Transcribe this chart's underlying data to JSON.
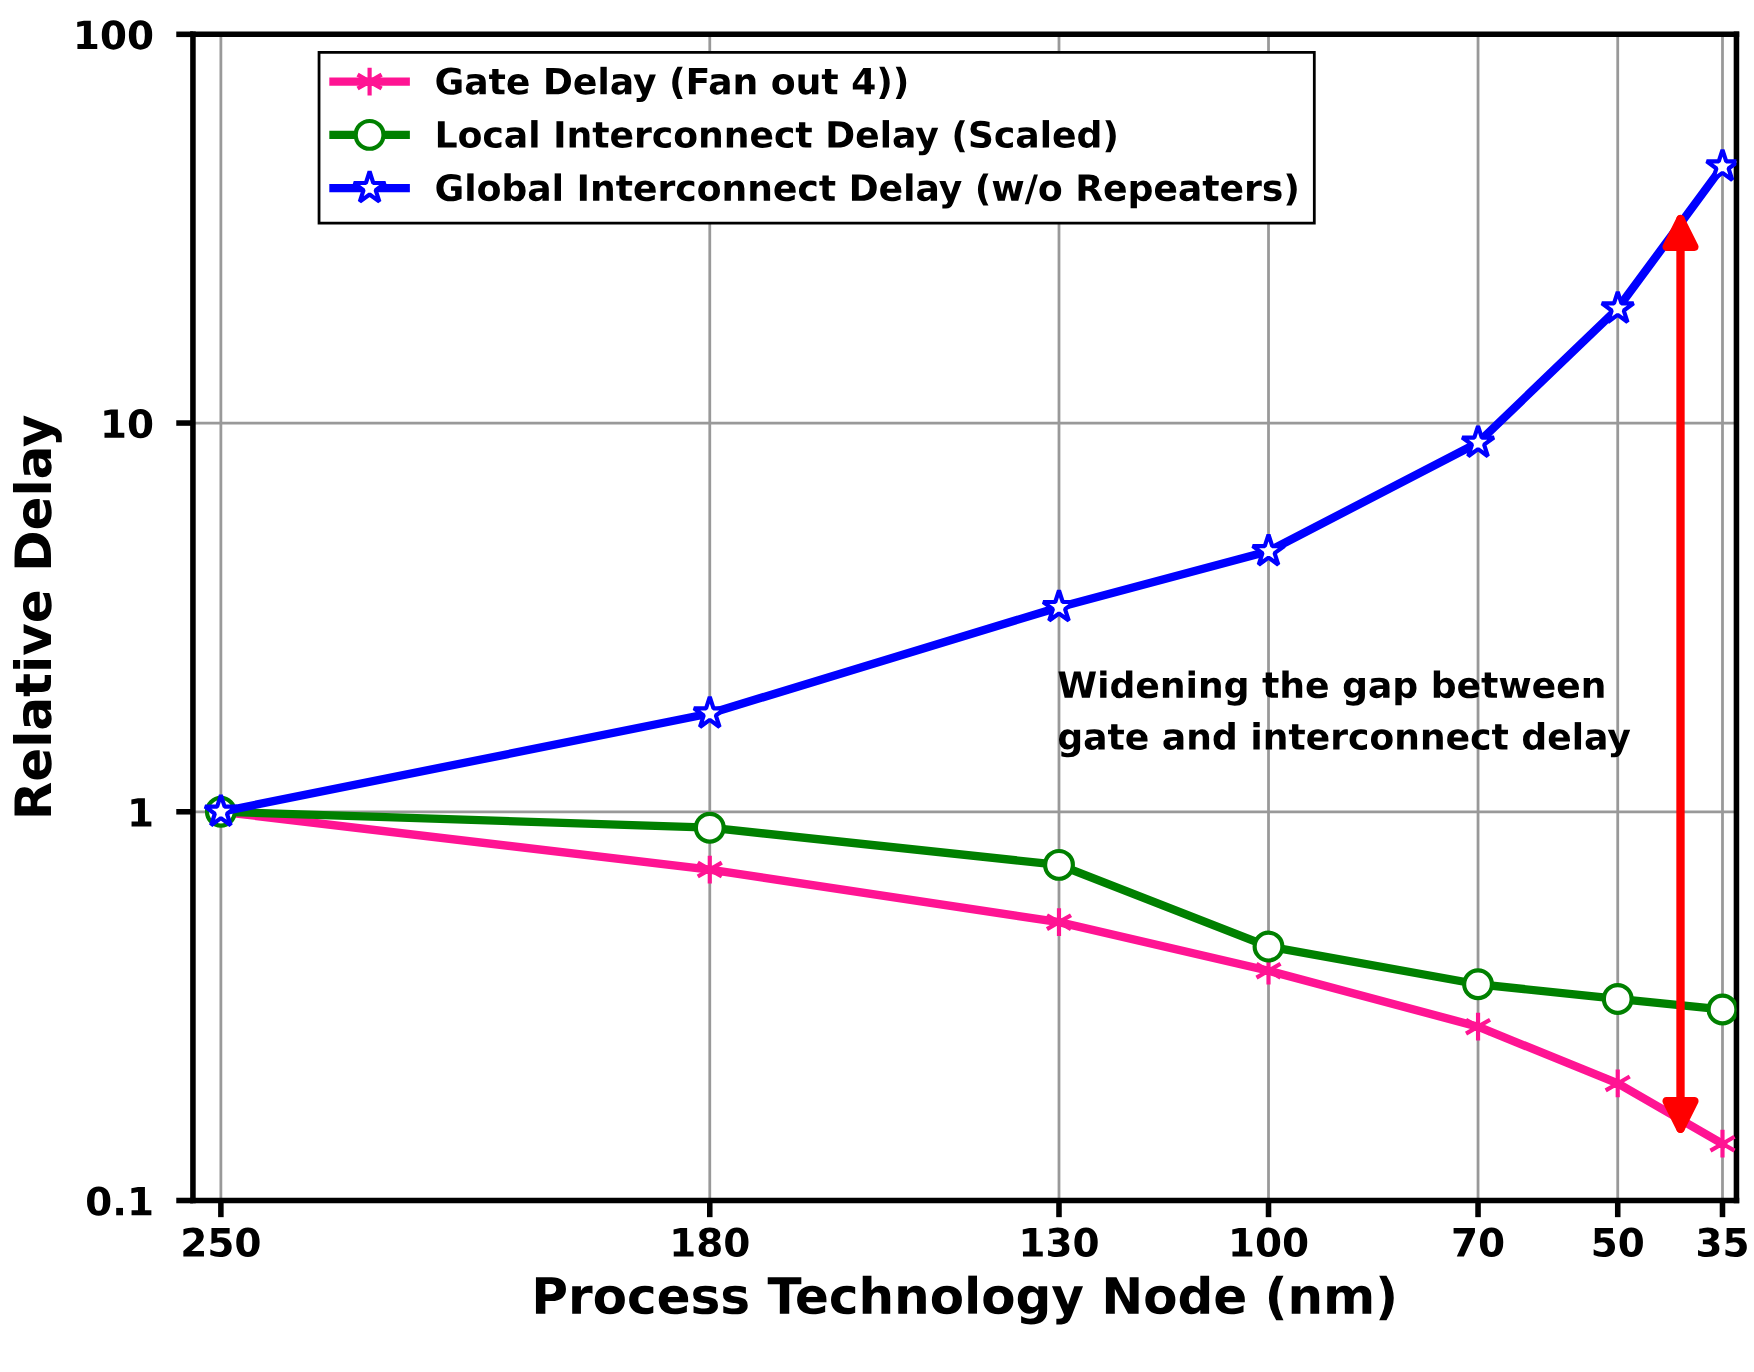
{
  "chart_data": {
    "type": "line",
    "xlabel": "Process Technology Node (nm)",
    "ylabel": "Relative Delay",
    "x": [
      250,
      180,
      130,
      100,
      70,
      50,
      35
    ],
    "xlim": [
      254,
      33
    ],
    "xticks": [
      250,
      180,
      130,
      100,
      70,
      50,
      35
    ],
    "ylim": [
      0.1,
      100
    ],
    "yticks": [
      0.1,
      1,
      10,
      100
    ],
    "log": true,
    "grid": true,
    "legend": "top",
    "line_style": "solid",
    "series": [
      {
        "name": "Gate Delay (Fan out 4))",
        "color": "#ff1493",
        "marker": "cross",
        "values": [
          1,
          0.71,
          0.52,
          0.39,
          0.28,
          0.2,
          0.14
        ]
      },
      {
        "name": "Local Interconnect Delay (Scaled)",
        "color": "#008000",
        "marker": "circle",
        "values": [
          1,
          0.91,
          0.73,
          0.45,
          0.36,
          0.33,
          0.31
        ]
      },
      {
        "name": "Global Interconnect Delay (w/o Repeaters)",
        "color": "#0000ff",
        "marker": "star",
        "values": [
          1,
          1.79,
          3.36,
          4.68,
          8.9,
          19.7,
          45.7
        ]
      }
    ],
    "annotations": [
      "Widening the gap between\ngate and interconnect delay"
    ]
  }
}
